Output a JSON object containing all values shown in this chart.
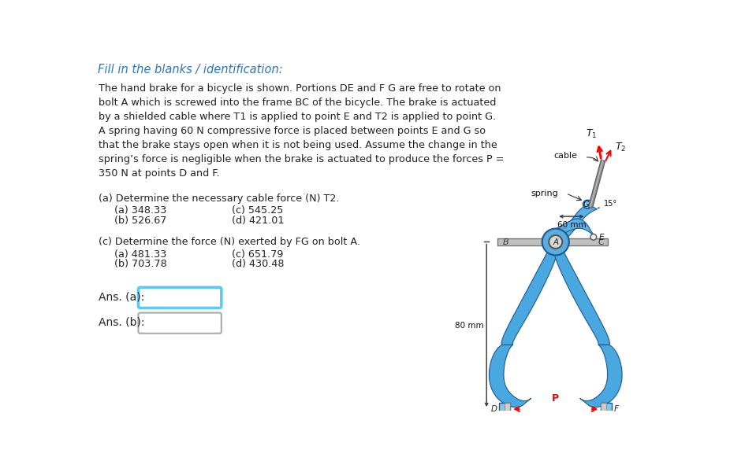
{
  "title": "Fill in the blanks / identification:",
  "body_text": "The hand brake for a bicycle is shown. Portions DE and F G are free to rotate on\nbolt A which is screwed into the frame BC of the bicycle. The brake is actuated\nby a shielded cable where T1 is applied to point E and T2 is applied to point G.\nA spring having 60 N compressive force is placed between points E and G so\nthat the brake stays open when it is not being used. Assume the change in the\nspring’s force is negligible when the brake is actuated to produce the forces P =\n350 N at points D and F.",
  "q1_text": "(a) Determine the necessary cable force (N) T2.",
  "q1_options_left": [
    "(a) 348.33",
    "(b) 526.67"
  ],
  "q1_options_right": [
    "(c) 545.25",
    "(d) 421.01"
  ],
  "q2_text": "(c) Determine the force (N) exerted by FG on bolt A.",
  "q2_options_left": [
    "(a) 481.33",
    "(b) 703.78"
  ],
  "q2_options_right": [
    "(c) 651.79",
    "(d) 430.48"
  ],
  "ans_a_label": "Ans. (a):",
  "ans_b_label": "Ans. (b):",
  "bg_color": "#ffffff",
  "title_color": "#2e75b6",
  "text_color": "#222222",
  "box_color_a": "#5bc8f5",
  "box_color_b": "#aaaaaa",
  "arm_blue_light": "#6ab4e8",
  "arm_blue_mid": "#3a8ccc",
  "arm_blue_dark": "#1a5a90",
  "frame_gray": "#b8b8b8",
  "cable_gray": "#888888"
}
